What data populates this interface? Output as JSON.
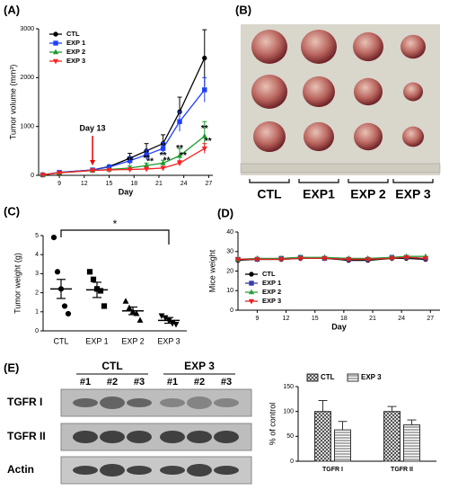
{
  "panel_labels": [
    "(A)",
    "(B)",
    "(C)",
    "(D)",
    "(E)"
  ],
  "photo": {
    "groups": [
      "CTL",
      "EXP1",
      "EXP 2",
      "EXP 3"
    ]
  },
  "blot": {
    "groups": [
      "CTL",
      "EXP 3"
    ],
    "lanes": [
      "#1",
      "#2",
      "#3",
      "#1",
      "#2",
      "#3"
    ],
    "rows": [
      "TGFR I",
      "TGFR II",
      "Actin"
    ]
  },
  "chart_data": [
    {
      "type": "line",
      "ylabel": "Tumor volume (mm³)",
      "xlabel": "Day",
      "x": [
        7,
        9,
        13,
        15,
        17.5,
        19.5,
        21.5,
        23.5,
        26.5
      ],
      "xlim": [
        6.5,
        27.5
      ],
      "xticks": [
        9,
        12,
        15,
        18,
        21,
        24,
        27
      ],
      "ylim": [
        0,
        3000
      ],
      "yticks": [
        0,
        1000,
        2000,
        3000
      ],
      "legend": "top-left",
      "series": [
        {
          "name": "CTL",
          "color": "#000000",
          "marker": "circle",
          "values": [
            10,
            60,
            110,
            180,
            350,
            500,
            650,
            1300,
            2400
          ],
          "errors": [
            0,
            10,
            20,
            30,
            100,
            150,
            180,
            300,
            580
          ]
        },
        {
          "name": "EXP 1",
          "color": "#1f3fff",
          "marker": "square",
          "values": [
            10,
            60,
            110,
            170,
            300,
            420,
            550,
            1100,
            1750
          ],
          "errors": [
            0,
            10,
            20,
            30,
            80,
            100,
            120,
            200,
            250
          ]
        },
        {
          "name": "EXP 2",
          "color": "#1a9a2a",
          "marker": "triangle",
          "values": [
            10,
            50,
            100,
            120,
            150,
            200,
            250,
            400,
            800
          ],
          "errors": [
            0,
            5,
            10,
            20,
            40,
            50,
            60,
            150,
            300
          ],
          "significance": [
            null,
            null,
            null,
            null,
            "**",
            "**",
            "**",
            "**",
            "**"
          ]
        },
        {
          "name": "EXP 3",
          "color": "#ff2020",
          "marker": "triangle-down",
          "values": [
            10,
            50,
            100,
            110,
            120,
            130,
            150,
            250,
            550
          ],
          "errors": [
            0,
            5,
            10,
            10,
            20,
            30,
            30,
            50,
            100
          ],
          "significance": [
            null,
            null,
            null,
            null,
            null,
            "**",
            "**",
            "**",
            "**"
          ]
        }
      ],
      "annotations": [
        {
          "text": "Day 13",
          "x": 13
        }
      ]
    },
    {
      "type": "dot",
      "ylabel": "Tumor weight (g)",
      "categories": [
        "CTL",
        "EXP 1",
        "EXP 2",
        "EXP 3"
      ],
      "values": [
        [
          4.9,
          3.1,
          2.2,
          1.3,
          0.9
        ],
        [
          3.1,
          2.7,
          2.2,
          2.1,
          1.3
        ],
        [
          1.55,
          1.2,
          1.0,
          0.9,
          0.55
        ],
        [
          0.8,
          0.7,
          0.55,
          0.4,
          0.35
        ]
      ],
      "means": [
        2.2,
        2.15,
        1.05,
        0.55
      ],
      "errors": [
        0.5,
        0.4,
        0.2,
        0.15
      ],
      "markers": [
        "circle",
        "square",
        "triangle",
        "triangle-down"
      ],
      "ylim": [
        0,
        5
      ],
      "yticks": [
        0,
        1,
        2,
        3,
        4,
        5
      ],
      "comparisons": [
        {
          "from": 0,
          "to": 3,
          "label": "*"
        }
      ]
    },
    {
      "type": "line",
      "ylabel": "Mice weight",
      "xlabel": "Day",
      "x": [
        7,
        9,
        11.5,
        13.5,
        16,
        18.5,
        20.5,
        23,
        24.5,
        26.5
      ],
      "xlim": [
        7,
        28
      ],
      "xticks": [
        9,
        12,
        15,
        18,
        21,
        24,
        27
      ],
      "ylim": [
        0,
        40
      ],
      "yticks": [
        0,
        10,
        20,
        30,
        40
      ],
      "legend": "lower-left",
      "grid": false,
      "series": [
        {
          "name": "CTL",
          "color": "#000000",
          "marker": "circle",
          "values": [
            25.5,
            26,
            26,
            26.5,
            26.5,
            25.5,
            25.5,
            26.5,
            26.5,
            26
          ]
        },
        {
          "name": "EXP 1",
          "color": "#3a3aa8",
          "marker": "square",
          "values": [
            26,
            26,
            26.5,
            27,
            26.5,
            26,
            26,
            27,
            27,
            26.5
          ]
        },
        {
          "name": "EXP 2",
          "color": "#2f9a3a",
          "marker": "triangle",
          "values": [
            26,
            26.5,
            26.5,
            27,
            27,
            26.5,
            26.5,
            27,
            27.5,
            27.5
          ]
        },
        {
          "name": "EXP 3",
          "color": "#e02020",
          "marker": "triangle-down",
          "values": [
            26,
            26,
            26,
            26.5,
            26.5,
            26,
            26,
            26.5,
            27,
            26.5
          ]
        }
      ]
    },
    {
      "type": "bar",
      "ylabel": "% of control",
      "categories": [
        "TGFR I",
        "TGFR II"
      ],
      "ylim": [
        0,
        150
      ],
      "yticks": [
        0,
        50,
        100,
        150
      ],
      "legend": "top",
      "series": [
        {
          "name": "CTL",
          "pattern": "crosshatch",
          "values": [
            100,
            100
          ],
          "errors": [
            22,
            10
          ]
        },
        {
          "name": "EXP 3",
          "pattern": "horizontal",
          "values": [
            63,
            73
          ],
          "errors": [
            17,
            10
          ]
        }
      ]
    }
  ]
}
